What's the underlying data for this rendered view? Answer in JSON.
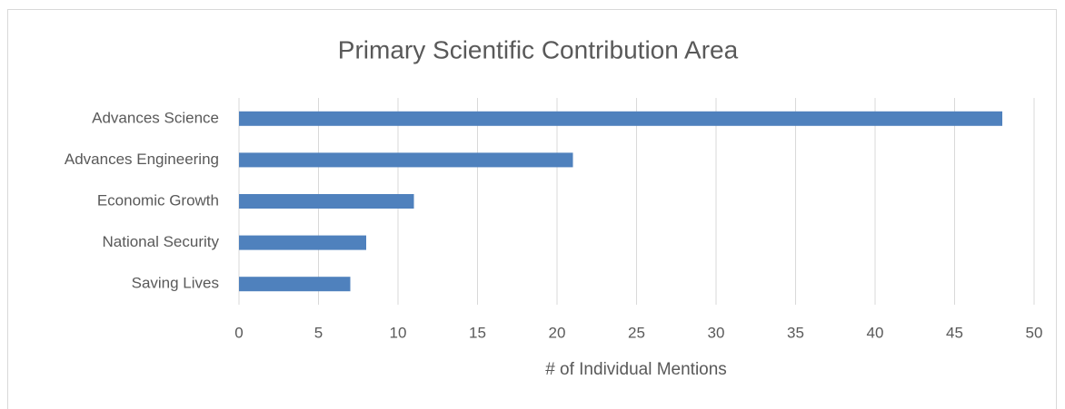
{
  "chart_data": {
    "type": "bar",
    "orientation": "horizontal",
    "title": "Primary Scientific Contribution Area",
    "x_label": "# of Individual Mentions",
    "categories": [
      "Advances Science",
      "Advances Engineering",
      "Economic Growth",
      "National Security",
      "Saving Lives"
    ],
    "values": [
      48,
      21,
      11,
      8,
      7
    ],
    "color": "#4f81bd",
    "xlim": [
      0,
      50
    ],
    "xticks": [
      0,
      5,
      10,
      15,
      20,
      25,
      30,
      35,
      40,
      45,
      50
    ],
    "grid": true
  }
}
